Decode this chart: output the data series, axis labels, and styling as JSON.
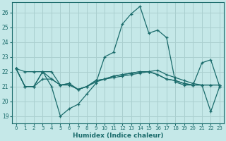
{
  "xlabel": "Humidex (Indice chaleur)",
  "bg_color": "#c5e8e8",
  "grid_color": "#aacfcf",
  "line_color": "#1a6b6b",
  "xlim": [
    -0.5,
    23.5
  ],
  "ylim": [
    18.5,
    26.7
  ],
  "yticks": [
    19,
    20,
    21,
    22,
    23,
    24,
    25,
    26
  ],
  "xticks": [
    0,
    1,
    2,
    3,
    4,
    5,
    6,
    7,
    8,
    9,
    10,
    11,
    12,
    13,
    14,
    15,
    16,
    17,
    18,
    19,
    20,
    21,
    22,
    23
  ],
  "series": [
    [
      22.2,
      22.0,
      22.0,
      22.0,
      21.0,
      19.0,
      19.5,
      19.8,
      20.5,
      21.2,
      23.0,
      23.3,
      25.2,
      25.9,
      26.4,
      24.6,
      24.8,
      24.3,
      21.3,
      21.1,
      21.1,
      21.1,
      21.1,
      21.1
    ],
    [
      22.2,
      21.0,
      21.0,
      22.0,
      22.0,
      21.1,
      21.1,
      20.8,
      21.0,
      21.3,
      21.5,
      21.6,
      21.7,
      21.8,
      21.9,
      22.0,
      22.1,
      21.8,
      21.6,
      21.4,
      21.2,
      21.1,
      21.1,
      21.1
    ],
    [
      22.2,
      21.0,
      21.0,
      21.5,
      21.5,
      21.1,
      21.2,
      20.8,
      21.0,
      21.4,
      21.5,
      21.7,
      21.8,
      21.9,
      22.0,
      22.0,
      21.8,
      21.5,
      21.4,
      21.2,
      21.1,
      22.6,
      22.8,
      21.0
    ],
    [
      22.2,
      21.0,
      21.0,
      22.0,
      21.5,
      21.1,
      21.2,
      20.8,
      21.0,
      21.4,
      21.5,
      21.7,
      21.8,
      21.9,
      22.0,
      22.0,
      21.8,
      21.5,
      21.4,
      21.2,
      21.1,
      21.1,
      19.3,
      21.0
    ]
  ]
}
